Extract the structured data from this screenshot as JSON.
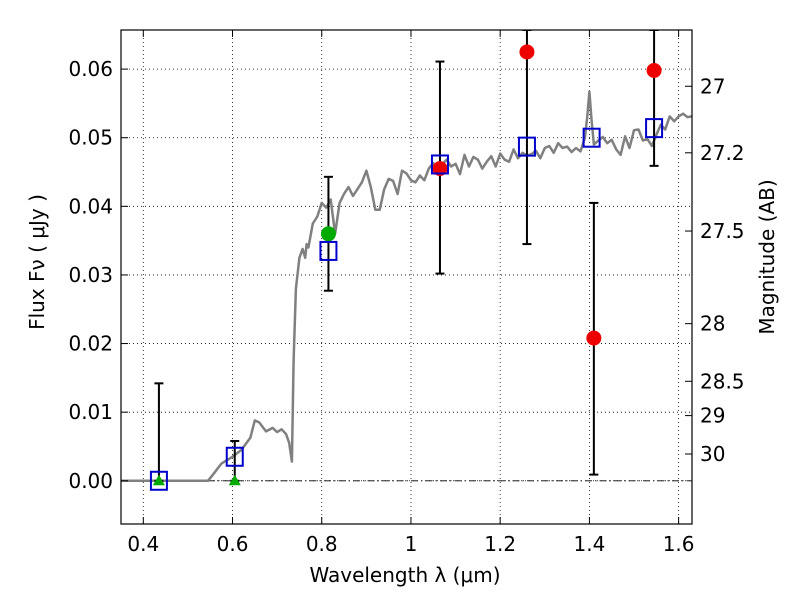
{
  "chart_data": {
    "type": "scatter",
    "xlabel": "Wavelength  λ (μm)",
    "ylabel": "Flux  Fν  ( μJy )",
    "ylabel_right": "Magnitude (AB)",
    "xlim": [
      0.35,
      1.63
    ],
    "ylim": [
      -0.0063,
      0.0657
    ],
    "grid": true,
    "x_ticks": [
      0.4,
      0.6,
      0.8,
      1.0,
      1.2,
      1.4,
      1.6
    ],
    "x_tick_labels": [
      "0.4",
      "0.6",
      "0.8",
      "1",
      "1.2",
      "1.4",
      "1.6"
    ],
    "y_ticks": [
      0.0,
      0.01,
      0.02,
      0.03,
      0.04,
      0.05,
      0.06
    ],
    "y_tick_labels": [
      "0.00",
      "0.01",
      "0.02",
      "0.03",
      "0.04",
      "0.05",
      "0.06"
    ],
    "right_ticks": [
      {
        "label": "27",
        "flux": 0.0575
      },
      {
        "label": "27.2",
        "flux": 0.0478
      },
      {
        "label": "27.5",
        "flux": 0.0364
      },
      {
        "label": "28",
        "flux": 0.0229
      },
      {
        "label": "28.5",
        "flux": 0.0145
      },
      {
        "label": "29",
        "flux": 0.0095
      },
      {
        "label": "30",
        "flux": 0.0039
      }
    ],
    "model_spectrum": {
      "color": "#808080",
      "x": [
        0.35,
        0.4,
        0.45,
        0.5,
        0.545,
        0.555,
        0.575,
        0.6,
        0.62,
        0.64,
        0.65,
        0.66,
        0.675,
        0.69,
        0.7,
        0.71,
        0.72,
        0.727,
        0.733,
        0.737,
        0.742,
        0.75,
        0.757,
        0.763,
        0.766,
        0.77,
        0.78,
        0.79,
        0.8,
        0.81,
        0.82,
        0.83,
        0.84,
        0.85,
        0.86,
        0.87,
        0.88,
        0.89,
        0.9,
        0.91,
        0.92,
        0.93,
        0.94,
        0.95,
        0.96,
        0.97,
        0.98,
        0.99,
        1.0,
        1.01,
        1.02,
        1.03,
        1.04,
        1.05,
        1.06,
        1.07,
        1.08,
        1.09,
        1.1,
        1.11,
        1.12,
        1.13,
        1.14,
        1.15,
        1.16,
        1.17,
        1.18,
        1.19,
        1.2,
        1.21,
        1.22,
        1.23,
        1.24,
        1.25,
        1.26,
        1.27,
        1.28,
        1.29,
        1.3,
        1.31,
        1.32,
        1.33,
        1.34,
        1.35,
        1.36,
        1.37,
        1.38,
        1.39,
        1.395,
        1.4,
        1.405,
        1.41,
        1.42,
        1.43,
        1.44,
        1.45,
        1.46,
        1.47,
        1.48,
        1.49,
        1.5,
        1.51,
        1.52,
        1.53,
        1.54,
        1.55,
        1.56,
        1.57,
        1.58,
        1.59,
        1.6,
        1.61,
        1.62,
        1.63
      ],
      "y": [
        0.0,
        0.0,
        0.0,
        0.0,
        0.0,
        0.0008,
        0.0025,
        0.0035,
        0.0045,
        0.0063,
        0.0088,
        0.0085,
        0.0072,
        0.0077,
        0.0071,
        0.0075,
        0.0068,
        0.0055,
        0.0028,
        0.0175,
        0.028,
        0.0325,
        0.0338,
        0.0325,
        0.0345,
        0.034,
        0.0375,
        0.0385,
        0.0405,
        0.0398,
        0.041,
        0.036,
        0.0405,
        0.0418,
        0.0428,
        0.0415,
        0.0425,
        0.0435,
        0.0452,
        0.0428,
        0.0395,
        0.0395,
        0.0425,
        0.044,
        0.0437,
        0.0418,
        0.0452,
        0.0448,
        0.0438,
        0.0435,
        0.0445,
        0.0438,
        0.0455,
        0.0463,
        0.0448,
        0.0461,
        0.0468,
        0.0458,
        0.0462,
        0.0447,
        0.0475,
        0.0458,
        0.0472,
        0.0468,
        0.0455,
        0.0465,
        0.0473,
        0.0458,
        0.0477,
        0.0468,
        0.0465,
        0.0483,
        0.047,
        0.0478,
        0.0474,
        0.0476,
        0.0481,
        0.047,
        0.0485,
        0.0488,
        0.0478,
        0.0492,
        0.0485,
        0.0487,
        0.0479,
        0.0485,
        0.048,
        0.05,
        0.053,
        0.0567,
        0.0525,
        0.049,
        0.0496,
        0.0501,
        0.0492,
        0.0497,
        0.0483,
        0.0475,
        0.0502,
        0.0485,
        0.0511,
        0.0512,
        0.0496,
        0.0498,
        0.0488,
        0.0504,
        0.0519,
        0.0512,
        0.0531,
        0.0524,
        0.0531,
        0.0535,
        0.053,
        0.0531
      ]
    },
    "series": [
      {
        "marker": "triangle",
        "color": "#00aa00",
        "x": [
          0.435,
          0.605
        ],
        "y": [
          0.0,
          0.0
        ]
      },
      {
        "marker": "circle",
        "color": "#00aa00",
        "x": [
          0.815
        ],
        "y": [
          0.036
        ]
      },
      {
        "marker": "circle",
        "color": "#ee0000",
        "x": [
          1.065,
          1.26,
          1.41,
          1.545
        ],
        "y": [
          0.0455,
          0.0625,
          0.0208,
          0.0598
        ]
      },
      {
        "marker": "open-square",
        "color": "#0000cc",
        "x": [
          0.435,
          0.605,
          0.815,
          1.065,
          1.26,
          1.405,
          1.545
        ],
        "y": [
          0.0,
          0.0035,
          0.0335,
          0.0461,
          0.0487,
          0.05,
          0.0514
        ]
      }
    ],
    "error_bars": [
      {
        "x": 0.435,
        "y": 0.0,
        "lo": 0.0,
        "hi": 0.0142
      },
      {
        "x": 0.605,
        "y": 0.0035,
        "lo": 0.0,
        "hi": 0.0058
      },
      {
        "x": 0.815,
        "y": 0.0335,
        "lo": 0.0277,
        "hi": 0.0443
      },
      {
        "x": 1.065,
        "y": 0.0461,
        "lo": 0.0302,
        "hi": 0.0611
      },
      {
        "x": 1.26,
        "y": 0.0487,
        "lo": 0.0345,
        "hi": 0.0657
      },
      {
        "x": 1.41,
        "y": 0.0208,
        "lo": 0.0009,
        "hi": 0.0405
      },
      {
        "x": 1.545,
        "y": 0.0514,
        "lo": 0.0459,
        "hi": 0.0657
      }
    ],
    "zero_line": {
      "y": 0.0,
      "style": "dash-dot",
      "color": "#000000"
    }
  }
}
